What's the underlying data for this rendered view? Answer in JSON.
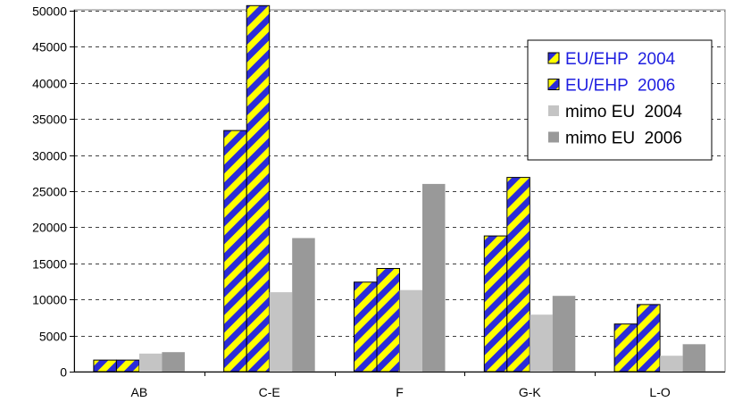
{
  "chart_data": {
    "type": "bar",
    "title": "",
    "xlabel": "",
    "ylabel": "",
    "categories": [
      "AB",
      "C-E",
      "F",
      "G-K",
      "L-O"
    ],
    "ylim": [
      0,
      50000
    ],
    "yticks": [
      0,
      5000,
      10000,
      15000,
      20000,
      25000,
      30000,
      35000,
      40000,
      45000,
      50000
    ],
    "grid": true,
    "legend_position": "top-right",
    "series": [
      {
        "name": "EU/EHP  2004",
        "values": [
          1600,
          33400,
          12400,
          18800,
          6600
        ],
        "fill": "stripe",
        "colors": [
          "#ffff00",
          "#2b2bd8"
        ],
        "legend_text_color": "#1f1fe0"
      },
      {
        "name": "EU/EHP  2006",
        "values": [
          1600,
          50700,
          14300,
          26900,
          9300
        ],
        "fill": "stripe",
        "colors": [
          "#ffff00",
          "#2b2bd8"
        ],
        "legend_text_color": "#1f1fe0"
      },
      {
        "name": "mimo EU  2004",
        "values": [
          2500,
          11000,
          11300,
          7900,
          2200
        ],
        "fill": "solid",
        "colors": [
          "#c4c4c4"
        ],
        "legend_text_color": "#000000"
      },
      {
        "name": "mimo EU  2006",
        "values": [
          2700,
          18500,
          26000,
          10500,
          3800
        ],
        "fill": "solid",
        "colors": [
          "#999999"
        ],
        "legend_text_color": "#000000"
      }
    ]
  }
}
